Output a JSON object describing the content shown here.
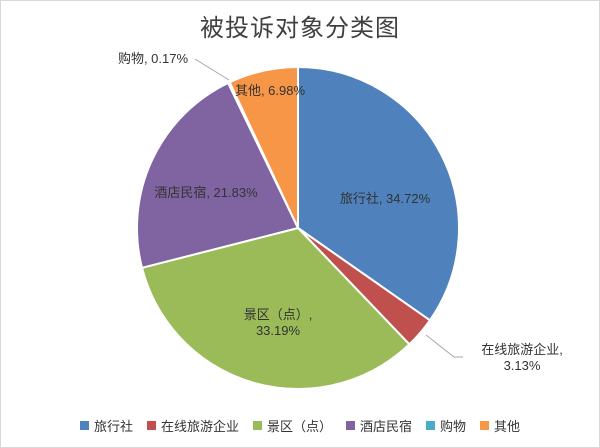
{
  "chart_title": "被投诉对象分类图",
  "chart_data": {
    "type": "pie",
    "title": "被投诉对象分类图",
    "categories": [
      "旅行社",
      "在线旅游企业",
      "景区（点）",
      "酒店民宿",
      "购物",
      "其他"
    ],
    "values": [
      34.72,
      3.13,
      33.19,
      21.83,
      0.17,
      6.98
    ],
    "unit": "%",
    "colors": [
      "#4F81BD",
      "#C0504D",
      "#9BBB59",
      "#8064A2",
      "#4BACC6",
      "#F79646"
    ],
    "start_angle_deg": 0,
    "direction": "clockwise",
    "legend_position": "bottom",
    "data_label_style": "category, value%"
  },
  "slice_labels": {
    "travel_agency": "旅行社, 34.72%",
    "online_travel_line1": "在线旅游企业,",
    "online_travel_line2": "3.13%",
    "scenic_spot_line1": "景区（点）,",
    "scenic_spot_line2": "33.19%",
    "hotel_bnb": "酒店民宿, 21.83%",
    "shopping": "购物, 0.17%",
    "other": "其他, 6.98%"
  },
  "legend": {
    "items": [
      {
        "label": "旅行社",
        "color": "#4F81BD"
      },
      {
        "label": "在线旅游企业",
        "color": "#C0504D"
      },
      {
        "label": "景区（点）",
        "color": "#9BBB59"
      },
      {
        "label": "酒店民宿",
        "color": "#8064A2"
      },
      {
        "label": "购物",
        "color": "#4BACC6"
      },
      {
        "label": "其他",
        "color": "#F79646"
      }
    ]
  }
}
